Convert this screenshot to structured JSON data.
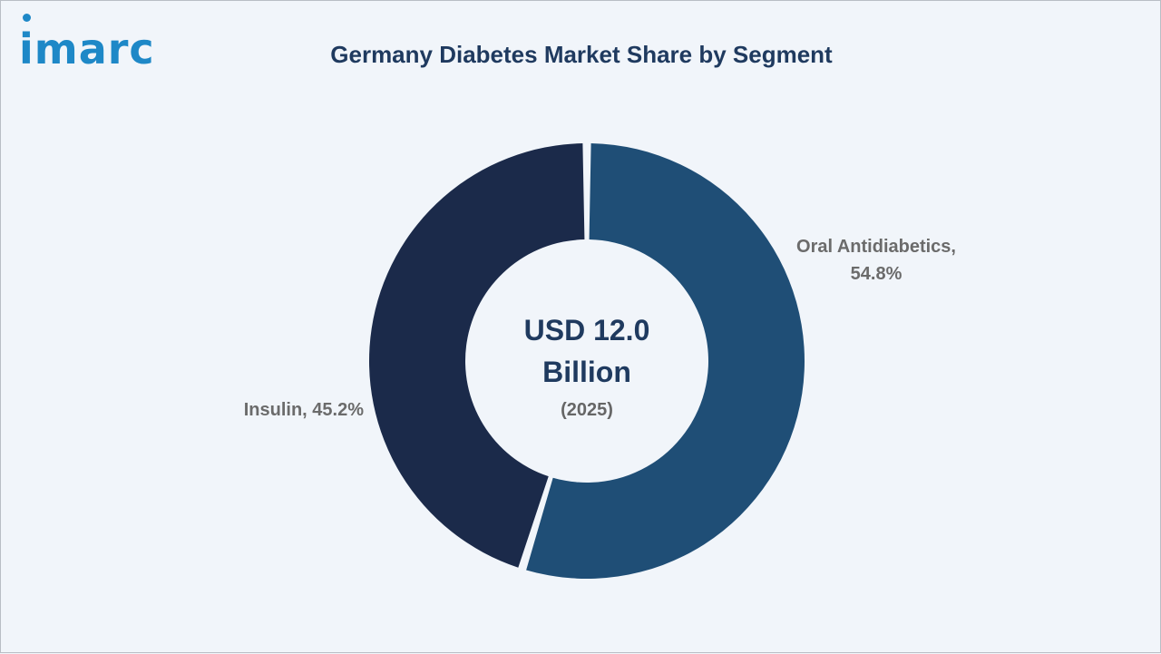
{
  "brand": {
    "logo_text": "imarc",
    "logo_color": "#1e88c7",
    "dot_color": "#1e88c7"
  },
  "title": "Germany Diabetes Market Share by Segment",
  "center": {
    "value_line1": "USD 12.0",
    "value_line2": "Billion",
    "year": "(2025)"
  },
  "labels": {
    "oral_line1": "Oral Antidiabetics,",
    "oral_line2": "54.8%",
    "insulin": "Insulin, 45.2%"
  },
  "chart_data": {
    "type": "pie",
    "subtype": "donut",
    "title": "Germany Diabetes Market Share by Segment",
    "unit": "%",
    "categories": [
      "Oral Antidiabetics",
      "Insulin"
    ],
    "values": [
      54.8,
      45.2
    ],
    "colors": [
      "#1f4e76",
      "#1b2a4a"
    ],
    "center_label": "USD 12.0 Billion (2025)"
  }
}
